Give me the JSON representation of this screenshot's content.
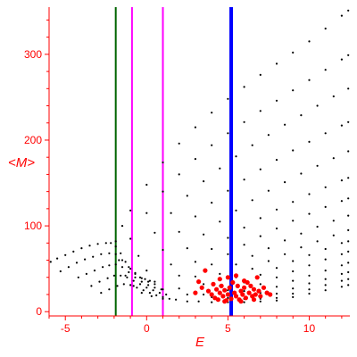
{
  "chart_data": {
    "type": "scatter",
    "title": "",
    "xlabel": "E",
    "ylabel": "<M>",
    "xlim": [
      -6,
      12.5
    ],
    "ylim": [
      -5,
      355
    ],
    "xticks": [
      -5,
      0,
      5,
      10
    ],
    "yticks": [
      0,
      100,
      200,
      300
    ],
    "grid": false,
    "legend": "none",
    "axis_color": "#ff0000",
    "vertical_lines": [
      {
        "x": -1.9,
        "color": "#006400"
      },
      {
        "x": -0.9,
        "color": "#ff00ff"
      },
      {
        "x": 1.0,
        "color": "#ff00ff"
      },
      {
        "x": 5.2,
        "color": "#0000ff"
      }
    ],
    "series": [
      {
        "color": "#000000",
        "points": [
          [
            -5.9,
            58
          ],
          [
            -5.5,
            62
          ],
          [
            -5,
            66
          ],
          [
            -4.5,
            70
          ],
          [
            -4,
            74
          ],
          [
            -3.5,
            77
          ],
          [
            -3,
            79
          ],
          [
            -2.5,
            80
          ],
          [
            -2.2,
            80
          ],
          [
            -1.9,
            76
          ],
          [
            -1.6,
            68
          ],
          [
            -1.3,
            58
          ],
          [
            -1,
            50
          ],
          [
            -0.7,
            44
          ],
          [
            -0.4,
            40
          ],
          [
            -0.1,
            38
          ],
          [
            0.2,
            36
          ]
        ]
      },
      {
        "color": "#000000",
        "points": [
          [
            -5.3,
            47
          ],
          [
            -4.8,
            52
          ],
          [
            -4.3,
            57
          ],
          [
            -3.8,
            61
          ],
          [
            -3.3,
            64
          ],
          [
            -2.8,
            67
          ],
          [
            -2.3,
            68
          ],
          [
            -1.9,
            67
          ],
          [
            -1.5,
            60
          ],
          [
            -1.1,
            52
          ],
          [
            -0.7,
            45
          ],
          [
            -0.3,
            39
          ],
          [
            0.1,
            35
          ],
          [
            0.5,
            32
          ]
        ]
      },
      {
        "color": "#000000",
        "points": [
          [
            -4.2,
            40
          ],
          [
            -3.7,
            44
          ],
          [
            -3.2,
            48
          ],
          [
            -2.7,
            52
          ],
          [
            -2.3,
            54
          ],
          [
            -1.9,
            55
          ],
          [
            -1.5,
            52
          ],
          [
            -1.1,
            46
          ],
          [
            -0.7,
            40
          ],
          [
            -0.3,
            35
          ],
          [
            0.1,
            31
          ],
          [
            0.5,
            28
          ],
          [
            0.9,
            26
          ]
        ]
      },
      {
        "color": "#000000",
        "points": [
          [
            -3.4,
            30
          ],
          [
            -2.9,
            35
          ],
          [
            -2.4,
            39
          ],
          [
            -2,
            42
          ],
          [
            -1.6,
            42
          ],
          [
            -1.2,
            40
          ],
          [
            -0.8,
            36
          ],
          [
            -0.4,
            32
          ],
          [
            0,
            28
          ],
          [
            0.4,
            25
          ],
          [
            0.8,
            22
          ],
          [
            1.2,
            20
          ]
        ]
      },
      {
        "color": "#000000",
        "points": [
          [
            -2.8,
            22
          ],
          [
            -2.3,
            26
          ],
          [
            -1.8,
            30
          ],
          [
            -1.4,
            32
          ],
          [
            -1,
            31
          ],
          [
            -0.6,
            28
          ],
          [
            -0.2,
            25
          ],
          [
            0.2,
            22
          ],
          [
            0.6,
            19
          ],
          [
            1,
            17
          ],
          [
            1.4,
            15
          ]
        ]
      },
      {
        "color": "#000000",
        "points": [
          [
            -1.9,
            82
          ],
          [
            -1.5,
            100
          ],
          [
            -1,
            118
          ],
          [
            0,
            148
          ],
          [
            1,
            174
          ],
          [
            2,
            196
          ],
          [
            3,
            215
          ],
          [
            4,
            232
          ],
          [
            5,
            248
          ],
          [
            6,
            262
          ],
          [
            7,
            276
          ],
          [
            8,
            289
          ],
          [
            9,
            302
          ],
          [
            10,
            315
          ],
          [
            11,
            330
          ],
          [
            12,
            345
          ],
          [
            12.4,
            351
          ]
        ]
      },
      {
        "color": "#000000",
        "points": [
          [
            -1.7,
            60
          ],
          [
            -1,
            85
          ],
          [
            0,
            115
          ],
          [
            1,
            140
          ],
          [
            2,
            160
          ],
          [
            3,
            178
          ],
          [
            4,
            194
          ],
          [
            5,
            208
          ],
          [
            6,
            221
          ],
          [
            7,
            234
          ],
          [
            8,
            246
          ],
          [
            9,
            258
          ],
          [
            10,
            270
          ],
          [
            11,
            282
          ],
          [
            12,
            294
          ],
          [
            12.4,
            299
          ]
        ]
      },
      {
        "color": "#000000",
        "points": [
          [
            -1.3,
            42
          ],
          [
            -0.5,
            65
          ],
          [
            0.5,
            92
          ],
          [
            1.5,
            115
          ],
          [
            2.5,
            135
          ],
          [
            3.5,
            152
          ],
          [
            4.5,
            167
          ],
          [
            5.5,
            181
          ],
          [
            6.5,
            194
          ],
          [
            7.5,
            206
          ],
          [
            8.5,
            218
          ],
          [
            9.5,
            229
          ],
          [
            10.5,
            240
          ],
          [
            11.5,
            251
          ],
          [
            12.4,
            260
          ]
        ]
      },
      {
        "color": "#000000",
        "points": [
          [
            -0.8,
            30
          ],
          [
            0,
            48
          ],
          [
            1,
            72
          ],
          [
            2,
            93
          ],
          [
            3,
            111
          ],
          [
            4,
            127
          ],
          [
            5,
            141
          ],
          [
            6,
            154
          ],
          [
            7,
            166
          ],
          [
            8,
            177
          ],
          [
            9,
            188
          ],
          [
            10,
            198
          ],
          [
            11,
            208
          ],
          [
            12,
            217
          ],
          [
            12.4,
            221
          ]
        ]
      },
      {
        "color": "#000000",
        "points": [
          [
            -0.3,
            22
          ],
          [
            0.5,
            35
          ],
          [
            1.5,
            55
          ],
          [
            2.5,
            74
          ],
          [
            3.5,
            90
          ],
          [
            4.5,
            105
          ],
          [
            5.5,
            118
          ],
          [
            6.5,
            130
          ],
          [
            7.5,
            141
          ],
          [
            8.5,
            151
          ],
          [
            9.5,
            161
          ],
          [
            10.5,
            170
          ],
          [
            11.5,
            179
          ],
          [
            12.4,
            187
          ]
        ]
      },
      {
        "color": "#000000",
        "points": [
          [
            0.3,
            18
          ],
          [
            1,
            26
          ],
          [
            2,
            42
          ],
          [
            3,
            58
          ],
          [
            4,
            73
          ],
          [
            5,
            86
          ],
          [
            6,
            98
          ],
          [
            7,
            109
          ],
          [
            8,
            119
          ],
          [
            9,
            128
          ],
          [
            10,
            137
          ],
          [
            11,
            145
          ],
          [
            12,
            153
          ],
          [
            12.4,
            156
          ]
        ]
      },
      {
        "color": "#000000",
        "points": [
          [
            1,
            15
          ],
          [
            2,
            27
          ],
          [
            3,
            41
          ],
          [
            4,
            55
          ],
          [
            5,
            67
          ],
          [
            6,
            78
          ],
          [
            7,
            88
          ],
          [
            8,
            97
          ],
          [
            9,
            106
          ],
          [
            10,
            114
          ],
          [
            11,
            122
          ],
          [
            12,
            129
          ],
          [
            12.4,
            132
          ]
        ]
      },
      {
        "color": "#000000",
        "points": [
          [
            1.8,
            14
          ],
          [
            2.5,
            20
          ],
          [
            3.5,
            32
          ],
          [
            4.5,
            44
          ],
          [
            5.5,
            55
          ],
          [
            6.5,
            65
          ],
          [
            7.5,
            74
          ],
          [
            8.5,
            83
          ],
          [
            9.5,
            91
          ],
          [
            10.5,
            99
          ],
          [
            11.5,
            106
          ],
          [
            12.4,
            112
          ]
        ]
      },
      {
        "color": "#000000",
        "points": [
          [
            2.5,
            12
          ],
          [
            3.5,
            20
          ],
          [
            4.5,
            30
          ],
          [
            5.5,
            40
          ],
          [
            6.5,
            50
          ],
          [
            7.5,
            59
          ],
          [
            8.5,
            67
          ],
          [
            9.5,
            75
          ],
          [
            10.5,
            82
          ],
          [
            11.5,
            89
          ],
          [
            12.4,
            95
          ]
        ]
      },
      {
        "color": "#000000",
        "points": [
          [
            3.2,
            12
          ],
          [
            4,
            17
          ],
          [
            5,
            25
          ],
          [
            6,
            34
          ],
          [
            7,
            43
          ],
          [
            8,
            51
          ],
          [
            9,
            59
          ],
          [
            10,
            66
          ],
          [
            11,
            73
          ],
          [
            12,
            80
          ],
          [
            12.4,
            82
          ]
        ]
      },
      {
        "color": "#000000",
        "points": [
          [
            4,
            11
          ],
          [
            5,
            16
          ],
          [
            6,
            24
          ],
          [
            7,
            32
          ],
          [
            8,
            40
          ],
          [
            9,
            47
          ],
          [
            10,
            54
          ],
          [
            11,
            61
          ],
          [
            12,
            67
          ],
          [
            12.4,
            70
          ]
        ]
      },
      {
        "color": "#000000",
        "points": [
          [
            5,
            11
          ],
          [
            6,
            15
          ],
          [
            7,
            22
          ],
          [
            8,
            29
          ],
          [
            9,
            36
          ],
          [
            10,
            42
          ],
          [
            11,
            48
          ],
          [
            12,
            54
          ],
          [
            12.4,
            57
          ]
        ]
      },
      {
        "color": "#000000",
        "points": [
          [
            6,
            11
          ],
          [
            7,
            15
          ],
          [
            8,
            21
          ],
          [
            9,
            27
          ],
          [
            10,
            33
          ],
          [
            11,
            38
          ],
          [
            12,
            44
          ],
          [
            12.4,
            46
          ]
        ]
      },
      {
        "color": "#000000",
        "points": [
          [
            7,
            12
          ],
          [
            8,
            16
          ],
          [
            9,
            21
          ],
          [
            10,
            26
          ],
          [
            11,
            31
          ],
          [
            12,
            36
          ],
          [
            12.4,
            38
          ]
        ]
      },
      {
        "color": "#000000",
        "points": [
          [
            8,
            13
          ],
          [
            9,
            17
          ],
          [
            10,
            21
          ],
          [
            11,
            25
          ],
          [
            12,
            29
          ],
          [
            12.4,
            31
          ]
        ]
      },
      {
        "color": "#ff0000",
        "points": [
          [
            3,
            22
          ],
          [
            3.2,
            35
          ],
          [
            3.4,
            28
          ],
          [
            3.6,
            48
          ],
          [
            3.8,
            24
          ],
          [
            4,
            20
          ],
          [
            4.1,
            32
          ],
          [
            4.2,
            16
          ],
          [
            4.3,
            26
          ],
          [
            4.4,
            14
          ],
          [
            4.5,
            22
          ],
          [
            4.6,
            30
          ],
          [
            4.7,
            18
          ],
          [
            4.8,
            25
          ],
          [
            4.9,
            13
          ],
          [
            5,
            20
          ],
          [
            5.1,
            28
          ],
          [
            5.2,
            15
          ],
          [
            5.3,
            34
          ],
          [
            5.4,
            22
          ],
          [
            5.5,
            18
          ],
          [
            5.6,
            30
          ],
          [
            5.7,
            14
          ],
          [
            5.8,
            24
          ],
          [
            5.9,
            20
          ],
          [
            6,
            28
          ],
          [
            6.1,
            16
          ],
          [
            6.2,
            34
          ],
          [
            6.3,
            22
          ],
          [
            6.4,
            30
          ],
          [
            6.5,
            18
          ],
          [
            6.6,
            26
          ],
          [
            6.7,
            20
          ],
          [
            6.8,
            40
          ],
          [
            6.9,
            24
          ],
          [
            7,
            18
          ],
          [
            7.2,
            28
          ],
          [
            7.4,
            22
          ],
          [
            7.6,
            20
          ],
          [
            4.5,
            38
          ],
          [
            5,
            40
          ],
          [
            5.5,
            42
          ],
          [
            6,
            36
          ],
          [
            4.8,
            12
          ],
          [
            5.8,
            12
          ],
          [
            6.6,
            14
          ]
        ]
      }
    ]
  }
}
